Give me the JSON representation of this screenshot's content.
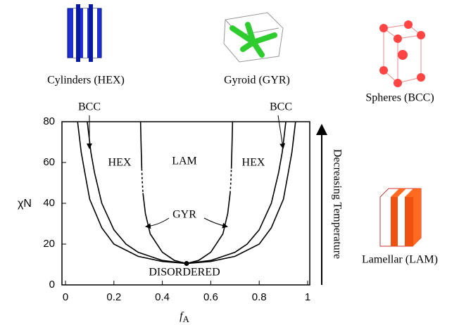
{
  "chart_data": {
    "type": "line",
    "x_label": "f",
    "x_label_subscript": "A",
    "y_label": "χN",
    "xlim": [
      0,
      1
    ],
    "ylim": [
      0,
      80
    ],
    "xticks": [
      0,
      0.2,
      0.4,
      0.6,
      0.8,
      1
    ],
    "yticks": [
      0,
      20,
      40,
      60,
      80
    ],
    "series": [
      {
        "color": "#000000",
        "dashed": false,
        "x": [
          0.05,
          0.065,
          0.08,
          0.1,
          0.15,
          0.2,
          0.3,
          0.4,
          0.5,
          0.6,
          0.7,
          0.8,
          0.85,
          0.9,
          0.92,
          0.935,
          0.95
        ],
        "values": [
          80,
          65,
          55,
          42,
          28,
          20,
          14,
          11.5,
          10.5,
          11.5,
          14,
          20,
          28,
          42,
          55,
          65,
          80
        ]
      },
      {
        "color": "#000000",
        "dashed": false,
        "x": [
          0.09,
          0.105,
          0.12,
          0.15,
          0.2,
          0.25,
          0.3,
          0.4,
          0.5,
          0.6,
          0.7,
          0.75,
          0.8,
          0.85,
          0.88,
          0.895,
          0.91
        ],
        "values": [
          80,
          65,
          55,
          40,
          27,
          20,
          16,
          12,
          10.5,
          12,
          16,
          20,
          27,
          40,
          55,
          65,
          80
        ]
      },
      {
        "color": "#000000",
        "dashed": false,
        "x": [
          0.31,
          0.312,
          0.315,
          0.317,
          0.32,
          0.33,
          0.35,
          0.4,
          0.45,
          0.5,
          0.55,
          0.6,
          0.65,
          0.67,
          0.68,
          0.683,
          0.685,
          0.688,
          0.69
        ],
        "values": [
          80,
          70,
          57,
          null,
          45,
          35,
          25,
          16,
          12,
          10.5,
          12,
          16,
          25,
          35,
          45,
          null,
          57,
          70,
          80
        ]
      },
      {
        "color": "#000000",
        "dashed": true,
        "x": [
          0.315,
          0.317,
          0.32,
          0.5,
          0.68,
          0.683,
          0.685
        ],
        "values": [
          57,
          51,
          45,
          null,
          45,
          51,
          57
        ]
      }
    ],
    "critical_point": {
      "x": 0.5,
      "y": 10.5
    },
    "annotations": [
      "BCC",
      "BCC",
      "HEX",
      "LAM",
      "HEX",
      "GYR",
      "DISORDERED"
    ],
    "side_label": "Decreasing Temperature",
    "structures": [
      "Cylinders (HEX)",
      "Gyroid (GYR)",
      "Spheres (BCC)",
      "Lamellar (LAM)"
    ]
  }
}
